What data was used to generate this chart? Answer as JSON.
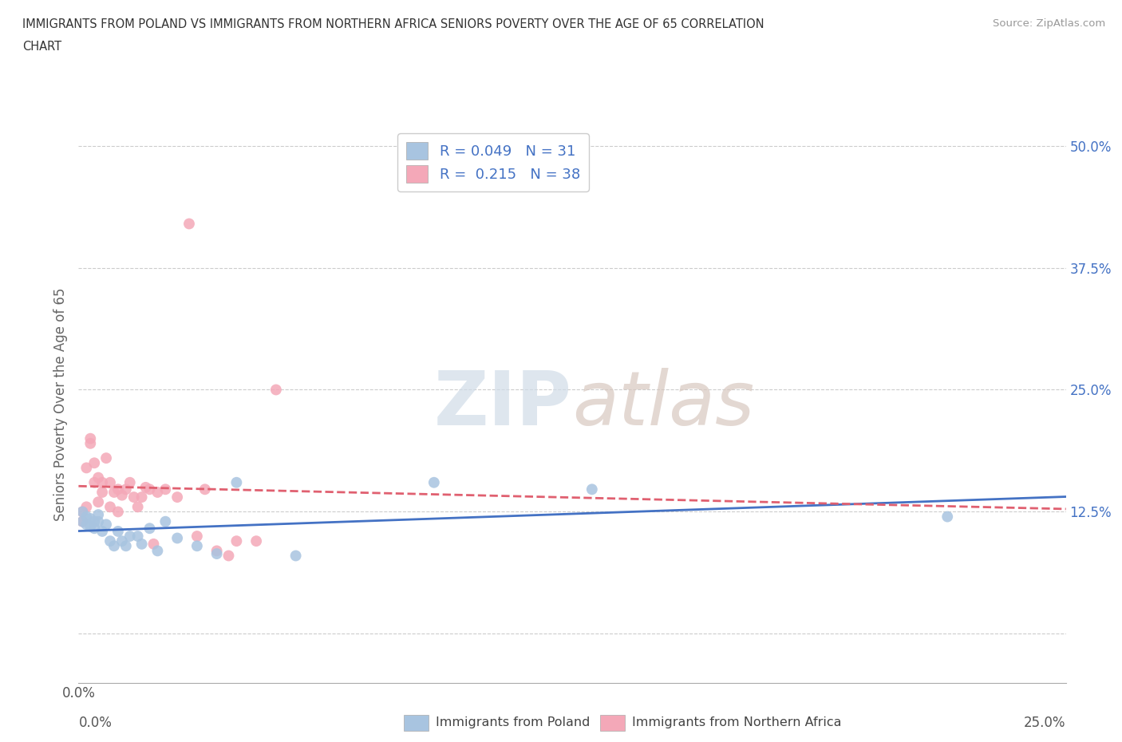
{
  "title_line1": "IMMIGRANTS FROM POLAND VS IMMIGRANTS FROM NORTHERN AFRICA SENIORS POVERTY OVER THE AGE OF 65 CORRELATION",
  "title_line2": "CHART",
  "source": "Source: ZipAtlas.com",
  "ylabel": "Seniors Poverty Over the Age of 65",
  "xlim": [
    0.0,
    0.25
  ],
  "ylim": [
    -0.05,
    0.52
  ],
  "ytick_positions": [
    0.0,
    0.125,
    0.25,
    0.375,
    0.5
  ],
  "ytick_labels": [
    "",
    "12.5%",
    "25.0%",
    "37.5%",
    "50.0%"
  ],
  "color_poland": "#a8c4e0",
  "color_n_africa": "#f4a8b8",
  "trend_color_poland": "#4472c4",
  "trend_color_n_africa": "#e06070",
  "poland_x": [
    0.001,
    0.001,
    0.002,
    0.002,
    0.003,
    0.003,
    0.004,
    0.004,
    0.005,
    0.005,
    0.006,
    0.007,
    0.008,
    0.009,
    0.01,
    0.011,
    0.012,
    0.013,
    0.015,
    0.016,
    0.018,
    0.02,
    0.022,
    0.025,
    0.03,
    0.035,
    0.04,
    0.055,
    0.09,
    0.13,
    0.22
  ],
  "poland_y": [
    0.125,
    0.115,
    0.112,
    0.12,
    0.118,
    0.11,
    0.108,
    0.115,
    0.115,
    0.122,
    0.105,
    0.112,
    0.095,
    0.09,
    0.105,
    0.095,
    0.09,
    0.1,
    0.1,
    0.092,
    0.108,
    0.085,
    0.115,
    0.098,
    0.09,
    0.082,
    0.155,
    0.08,
    0.155,
    0.148,
    0.12
  ],
  "n_africa_x": [
    0.001,
    0.001,
    0.002,
    0.002,
    0.003,
    0.003,
    0.004,
    0.004,
    0.005,
    0.005,
    0.006,
    0.006,
    0.007,
    0.008,
    0.008,
    0.009,
    0.01,
    0.01,
    0.011,
    0.012,
    0.013,
    0.014,
    0.015,
    0.016,
    0.017,
    0.018,
    0.019,
    0.02,
    0.022,
    0.025,
    0.028,
    0.03,
    0.032,
    0.035,
    0.038,
    0.04,
    0.045,
    0.05
  ],
  "n_africa_y": [
    0.125,
    0.115,
    0.17,
    0.13,
    0.2,
    0.195,
    0.175,
    0.155,
    0.16,
    0.135,
    0.145,
    0.155,
    0.18,
    0.155,
    0.13,
    0.145,
    0.148,
    0.125,
    0.142,
    0.148,
    0.155,
    0.14,
    0.13,
    0.14,
    0.15,
    0.148,
    0.092,
    0.145,
    0.148,
    0.14,
    0.42,
    0.1,
    0.148,
    0.085,
    0.08,
    0.095,
    0.095,
    0.25
  ]
}
